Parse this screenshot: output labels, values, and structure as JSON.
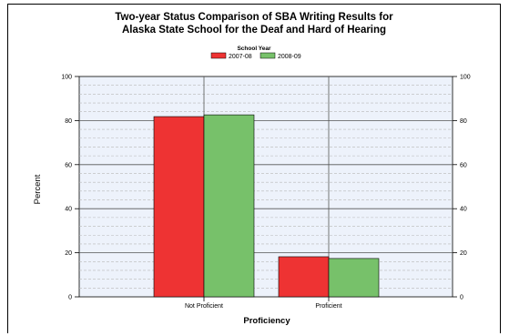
{
  "chart_data": {
    "type": "bar",
    "title_line1": "Two-year Status Comparison of SBA Writing Results for",
    "title_line2": "Alaska State School for the Deaf and Hard of Hearing",
    "legend_title": "School Year",
    "legend_position": "top-center",
    "categories": [
      "Not Proficient",
      "Proficient"
    ],
    "series": [
      {
        "name": "2007-08",
        "color": "#ee3333",
        "values": [
          81.8,
          18.2
        ]
      },
      {
        "name": "2008-09",
        "color": "#77c16a",
        "values": [
          82.6,
          17.4
        ]
      }
    ],
    "xlabel": "Proficiency",
    "ylabel": "Percent",
    "ylim": [
      0,
      100
    ],
    "y_ticks": [
      "0",
      "20",
      "40",
      "60",
      "80",
      "100"
    ],
    "grid": true,
    "plot_background": "#edf2fb"
  }
}
